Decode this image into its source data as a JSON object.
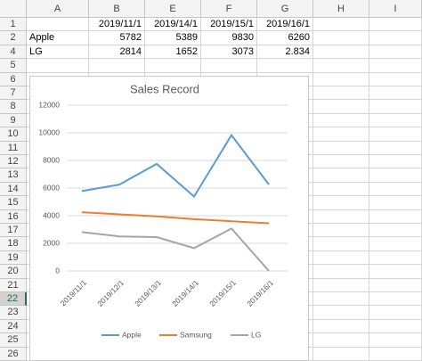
{
  "sheet": {
    "columns": [
      "A",
      "B",
      "E",
      "F",
      "G",
      "H",
      "I"
    ],
    "rows": [
      1,
      2,
      4,
      5,
      6,
      7,
      8,
      9,
      10,
      11,
      12,
      13,
      14,
      15,
      16,
      17,
      18,
      19,
      20,
      21,
      22,
      23,
      24,
      25,
      26
    ],
    "selected_row": 22,
    "cells": [
      [
        null,
        "2019/11/1",
        "2019/14/1",
        "2019/15/1",
        "2019/16/1"
      ],
      [
        "Apple",
        5782,
        5389,
        9830,
        6260
      ],
      [
        "LG",
        2814,
        1652,
        3073,
        2.834
      ]
    ]
  },
  "chart_data": {
    "type": "line",
    "title": "Sales Record",
    "categories": [
      "2019/11/1",
      "2019/12/1",
      "2019/13/1",
      "2019/14/1",
      "2019/15/1",
      "2019/16/1"
    ],
    "series": [
      {
        "name": "Apple",
        "color": "#5b9bd5",
        "values": [
          5782,
          6250,
          7750,
          5389,
          9830,
          6260
        ]
      },
      {
        "name": "Samsung",
        "color": "#ed7d31",
        "values": [
          4250,
          4100,
          3950,
          3750,
          3600,
          3450
        ]
      },
      {
        "name": "LG",
        "color": "#a5a5a5",
        "values": [
          2814,
          2500,
          2450,
          1652,
          3073,
          2.834
        ]
      }
    ],
    "ylim": [
      0,
      12000
    ],
    "yticks": [
      0,
      2000,
      4000,
      6000,
      8000,
      10000,
      12000
    ],
    "grid": true,
    "legend": "bottom"
  }
}
